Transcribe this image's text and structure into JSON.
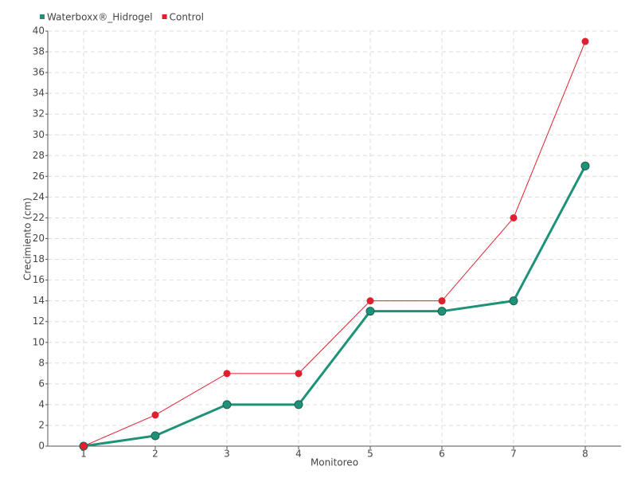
{
  "chart_data": {
    "type": "line",
    "x_label": "Monitoreo",
    "y_label": "Crecimiento (cm)",
    "categories": [
      "1",
      "2",
      "3",
      "4",
      "5",
      "6",
      "7",
      "8"
    ],
    "series": [
      {
        "name": "Waterboxx®_Hidrogel",
        "color": "#1e9278",
        "values": [
          0,
          1,
          4,
          4,
          13,
          13,
          14,
          27
        ]
      },
      {
        "name": "Control",
        "color": "#e0202e",
        "values": [
          0,
          3,
          7,
          7,
          14,
          14,
          22,
          39
        ]
      }
    ],
    "ylim": [
      0,
      40
    ],
    "yticks": [
      0,
      2,
      4,
      6,
      8,
      10,
      12,
      14,
      16,
      18,
      20,
      22,
      24,
      26,
      28,
      30,
      32,
      34,
      36,
      38,
      40
    ],
    "grid": true
  }
}
